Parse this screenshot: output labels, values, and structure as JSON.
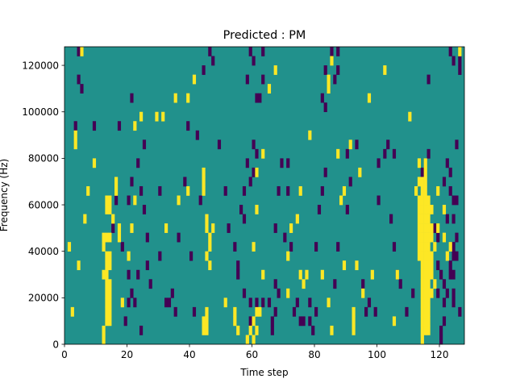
{
  "chart_data": {
    "type": "heatmap",
    "title": "Predicted : PM",
    "xlabel": "Time step",
    "ylabel": "Frequency (Hz)",
    "xlim": [
      0,
      128
    ],
    "ylim": [
      0,
      128000
    ],
    "x_ticks": [
      0,
      20,
      40,
      60,
      80,
      100,
      120
    ],
    "x_tick_labels": [
      "0",
      "20",
      "40",
      "60",
      "80",
      "100",
      "120"
    ],
    "y_ticks": [
      0,
      20000,
      40000,
      60000,
      80000,
      100000,
      120000
    ],
    "y_tick_labels": [
      "0",
      "20000",
      "40000",
      "60000",
      "80000",
      "100000",
      "120000"
    ],
    "grid": false,
    "legend": "none",
    "colormap": "viridis",
    "background_value": 0,
    "colors": {
      "background": "#21918c",
      "high": "#fde725",
      "low": "#440154"
    },
    "cell_width_steps": 1,
    "cell_height_hz": 4000,
    "high_cells": [
      [
        5,
        124000
      ],
      [
        3,
        84000
      ],
      [
        3,
        88000
      ],
      [
        1,
        40000
      ],
      [
        2,
        12000
      ],
      [
        4,
        32000
      ],
      [
        6,
        52000
      ],
      [
        7,
        64000
      ],
      [
        9,
        76000
      ],
      [
        12,
        4000
      ],
      [
        12,
        0
      ],
      [
        13,
        8000
      ],
      [
        13,
        12000
      ],
      [
        13,
        16000
      ],
      [
        13,
        20000
      ],
      [
        13,
        24000
      ],
      [
        13,
        28000
      ],
      [
        13,
        32000
      ],
      [
        13,
        36000
      ],
      [
        13,
        44000
      ],
      [
        13,
        56000
      ],
      [
        13,
        60000
      ],
      [
        14,
        8000
      ],
      [
        14,
        12000
      ],
      [
        14,
        16000
      ],
      [
        14,
        20000
      ],
      [
        14,
        24000
      ],
      [
        14,
        32000
      ],
      [
        14,
        36000
      ],
      [
        14,
        44000
      ],
      [
        14,
        56000
      ],
      [
        14,
        60000
      ],
      [
        12,
        28000
      ],
      [
        12,
        40000
      ],
      [
        12,
        44000
      ],
      [
        16,
        64000
      ],
      [
        16,
        68000
      ],
      [
        15,
        52000
      ],
      [
        17,
        44000
      ],
      [
        17,
        48000
      ],
      [
        18,
        16000
      ],
      [
        20,
        36000
      ],
      [
        21,
        48000
      ],
      [
        22,
        60000
      ],
      [
        22,
        92000
      ],
      [
        24,
        96000
      ],
      [
        29,
        96000
      ],
      [
        31,
        96000
      ],
      [
        32,
        48000
      ],
      [
        35,
        104000
      ],
      [
        36,
        60000
      ],
      [
        39,
        104000
      ],
      [
        39,
        64000
      ],
      [
        41,
        112000
      ],
      [
        44,
        64000
      ],
      [
        44,
        68000
      ],
      [
        44,
        72000
      ],
      [
        45,
        48000
      ],
      [
        45,
        52000
      ],
      [
        46,
        40000
      ],
      [
        46,
        44000
      ],
      [
        47,
        48000
      ],
      [
        45,
        36000
      ],
      [
        46,
        32000
      ],
      [
        44,
        8000
      ],
      [
        44,
        4000
      ],
      [
        45,
        4000
      ],
      [
        45,
        8000
      ],
      [
        45,
        12000
      ],
      [
        51,
        16000
      ],
      [
        54,
        12000
      ],
      [
        54,
        8000
      ],
      [
        55,
        4000
      ],
      [
        58,
        0
      ],
      [
        59,
        4000
      ],
      [
        60,
        0
      ],
      [
        60,
        8000
      ],
      [
        61,
        12000
      ],
      [
        62,
        12000
      ],
      [
        61,
        4000
      ],
      [
        63,
        28000
      ],
      [
        60,
        40000
      ],
      [
        61,
        56000
      ],
      [
        61,
        72000
      ],
      [
        63,
        80000
      ],
      [
        65,
        108000
      ],
      [
        67,
        116000
      ],
      [
        71,
        36000
      ],
      [
        71,
        20000
      ],
      [
        72,
        48000
      ],
      [
        74,
        52000
      ],
      [
        75,
        64000
      ],
      [
        76,
        24000
      ],
      [
        75,
        28000
      ],
      [
        77,
        28000
      ],
      [
        78,
        88000
      ],
      [
        82,
        28000
      ],
      [
        84,
        16000
      ],
      [
        84,
        108000
      ],
      [
        84,
        112000
      ],
      [
        85,
        120000
      ],
      [
        85,
        4000
      ],
      [
        87,
        80000
      ],
      [
        88,
        60000
      ],
      [
        89,
        32000
      ],
      [
        89,
        64000
      ],
      [
        91,
        84000
      ],
      [
        94,
        72000
      ],
      [
        93,
        32000
      ],
      [
        92,
        4000
      ],
      [
        92,
        8000
      ],
      [
        92,
        12000
      ],
      [
        95,
        20000
      ],
      [
        97,
        104000
      ],
      [
        98,
        28000
      ],
      [
        102,
        116000
      ],
      [
        105,
        8000
      ],
      [
        106,
        28000
      ],
      [
        110,
        96000
      ],
      [
        112,
        64000
      ],
      [
        113,
        68000
      ],
      [
        113,
        76000
      ],
      [
        113,
        36000
      ],
      [
        113,
        40000
      ],
      [
        113,
        44000
      ],
      [
        113,
        48000
      ],
      [
        113,
        52000
      ],
      [
        113,
        56000
      ],
      [
        113,
        60000
      ],
      [
        114,
        0
      ],
      [
        114,
        4000
      ],
      [
        114,
        8000
      ],
      [
        114,
        12000
      ],
      [
        114,
        16000
      ],
      [
        114,
        20000
      ],
      [
        114,
        24000
      ],
      [
        114,
        28000
      ],
      [
        114,
        32000
      ],
      [
        114,
        36000
      ],
      [
        114,
        40000
      ],
      [
        114,
        44000
      ],
      [
        114,
        48000
      ],
      [
        114,
        52000
      ],
      [
        114,
        56000
      ],
      [
        114,
        60000
      ],
      [
        114,
        64000
      ],
      [
        114,
        68000
      ],
      [
        115,
        4000
      ],
      [
        115,
        8000
      ],
      [
        115,
        12000
      ],
      [
        115,
        16000
      ],
      [
        115,
        20000
      ],
      [
        115,
        24000
      ],
      [
        115,
        28000
      ],
      [
        115,
        32000
      ],
      [
        115,
        36000
      ],
      [
        115,
        40000
      ],
      [
        115,
        44000
      ],
      [
        115,
        48000
      ],
      [
        115,
        52000
      ],
      [
        115,
        56000
      ],
      [
        115,
        60000
      ],
      [
        115,
        64000
      ],
      [
        115,
        68000
      ],
      [
        115,
        72000
      ],
      [
        115,
        76000
      ],
      [
        116,
        4000
      ],
      [
        116,
        8000
      ],
      [
        116,
        12000
      ],
      [
        116,
        16000
      ],
      [
        116,
        20000
      ],
      [
        116,
        24000
      ],
      [
        116,
        28000
      ],
      [
        116,
        32000
      ],
      [
        116,
        36000
      ],
      [
        116,
        40000
      ],
      [
        116,
        44000
      ],
      [
        116,
        48000
      ],
      [
        116,
        52000
      ],
      [
        116,
        56000
      ],
      [
        116,
        60000
      ],
      [
        117,
        28000
      ],
      [
        117,
        32000
      ],
      [
        117,
        36000
      ],
      [
        117,
        44000
      ],
      [
        117,
        48000
      ],
      [
        117,
        56000
      ],
      [
        117,
        20000
      ],
      [
        118,
        24000
      ],
      [
        118,
        40000
      ],
      [
        119,
        64000
      ],
      [
        119,
        48000
      ],
      [
        121,
        44000
      ],
      [
        122,
        36000
      ],
      [
        123,
        40000
      ],
      [
        121,
        56000
      ],
      [
        126,
        124000
      ]
    ],
    "low_cells": [
      [
        4,
        124000
      ],
      [
        5,
        108000
      ],
      [
        4,
        112000
      ],
      [
        3,
        92000
      ],
      [
        9,
        92000
      ],
      [
        17,
        92000
      ],
      [
        15,
        48000
      ],
      [
        16,
        60000
      ],
      [
        19,
        8000
      ],
      [
        20,
        16000
      ],
      [
        21,
        20000
      ],
      [
        20,
        28000
      ],
      [
        22,
        16000
      ],
      [
        23,
        28000
      ],
      [
        24,
        4000
      ],
      [
        18,
        40000
      ],
      [
        20,
        60000
      ],
      [
        21,
        68000
      ],
      [
        24,
        64000
      ],
      [
        25,
        84000
      ],
      [
        23,
        76000
      ],
      [
        21,
        104000
      ],
      [
        25,
        56000
      ],
      [
        26,
        44000
      ],
      [
        26,
        32000
      ],
      [
        27,
        24000
      ],
      [
        30,
        64000
      ],
      [
        30,
        36000
      ],
      [
        32,
        16000
      ],
      [
        33,
        16000
      ],
      [
        34,
        20000
      ],
      [
        35,
        12000
      ],
      [
        36,
        44000
      ],
      [
        38,
        68000
      ],
      [
        39,
        92000
      ],
      [
        41,
        12000
      ],
      [
        42,
        88000
      ],
      [
        43,
        60000
      ],
      [
        40,
        36000
      ],
      [
        44,
        116000
      ],
      [
        46,
        124000
      ],
      [
        47,
        120000
      ],
      [
        49,
        84000
      ],
      [
        51,
        64000
      ],
      [
        52,
        48000
      ],
      [
        54,
        40000
      ],
      [
        55,
        32000
      ],
      [
        55,
        28000
      ],
      [
        56,
        56000
      ],
      [
        57,
        52000
      ],
      [
        59,
        68000
      ],
      [
        58,
        112000
      ],
      [
        59,
        124000
      ],
      [
        61,
        104000
      ],
      [
        60,
        120000
      ],
      [
        62,
        104000
      ],
      [
        63,
        112000
      ],
      [
        63,
        124000
      ],
      [
        60,
        84000
      ],
      [
        61,
        80000
      ],
      [
        60,
        72000
      ],
      [
        58,
        76000
      ],
      [
        57,
        64000
      ],
      [
        57,
        20000
      ],
      [
        59,
        16000
      ],
      [
        59,
        8000
      ],
      [
        61,
        16000
      ],
      [
        63,
        16000
      ],
      [
        65,
        16000
      ],
      [
        66,
        8000
      ],
      [
        67,
        12000
      ],
      [
        66,
        4000
      ],
      [
        67,
        24000
      ],
      [
        68,
        20000
      ],
      [
        67,
        48000
      ],
      [
        68,
        64000
      ],
      [
        69,
        76000
      ],
      [
        71,
        76000
      ],
      [
        71,
        64000
      ],
      [
        70,
        44000
      ],
      [
        72,
        40000
      ],
      [
        74,
        16000
      ],
      [
        73,
        12000
      ],
      [
        75,
        8000
      ],
      [
        76,
        8000
      ],
      [
        78,
        8000
      ],
      [
        78,
        16000
      ],
      [
        80,
        12000
      ],
      [
        79,
        4000
      ],
      [
        80,
        40000
      ],
      [
        81,
        56000
      ],
      [
        82,
        64000
      ],
      [
        83,
        72000
      ],
      [
        82,
        104000
      ],
      [
        83,
        100000
      ],
      [
        83,
        116000
      ],
      [
        85,
        124000
      ],
      [
        87,
        124000
      ],
      [
        86,
        112000
      ],
      [
        87,
        116000
      ],
      [
        87,
        40000
      ],
      [
        86,
        24000
      ],
      [
        90,
        80000
      ],
      [
        90,
        56000
      ],
      [
        91,
        68000
      ],
      [
        93,
        84000
      ],
      [
        95,
        24000
      ],
      [
        96,
        12000
      ],
      [
        97,
        16000
      ],
      [
        99,
        12000
      ],
      [
        100,
        60000
      ],
      [
        100,
        76000
      ],
      [
        102,
        80000
      ],
      [
        103,
        84000
      ],
      [
        105,
        80000
      ],
      [
        104,
        52000
      ],
      [
        105,
        40000
      ],
      [
        106,
        28000
      ],
      [
        107,
        24000
      ],
      [
        109,
        12000
      ],
      [
        111,
        20000
      ],
      [
        114,
        72000
      ],
      [
        116,
        80000
      ],
      [
        116,
        112000
      ],
      [
        118,
        48000
      ],
      [
        119,
        44000
      ],
      [
        119,
        32000
      ],
      [
        119,
        20000
      ],
      [
        120,
        28000
      ],
      [
        121,
        24000
      ],
      [
        122,
        20000
      ],
      [
        123,
        28000
      ],
      [
        123,
        32000
      ],
      [
        124,
        36000
      ],
      [
        125,
        44000
      ],
      [
        122,
        52000
      ],
      [
        124,
        52000
      ],
      [
        124,
        60000
      ],
      [
        125,
        60000
      ],
      [
        121,
        68000
      ],
      [
        123,
        64000
      ],
      [
        123,
        72000
      ],
      [
        122,
        76000
      ],
      [
        125,
        84000
      ],
      [
        125,
        36000
      ],
      [
        126,
        12000
      ],
      [
        124,
        16000
      ],
      [
        124,
        20000
      ],
      [
        124,
        28000
      ],
      [
        124,
        40000
      ],
      [
        126,
        116000
      ],
      [
        123,
        124000
      ],
      [
        126,
        120000
      ],
      [
        124,
        120000
      ],
      [
        120,
        0
      ],
      [
        120,
        4000
      ],
      [
        121,
        8000
      ],
      [
        121,
        16000
      ]
    ]
  }
}
